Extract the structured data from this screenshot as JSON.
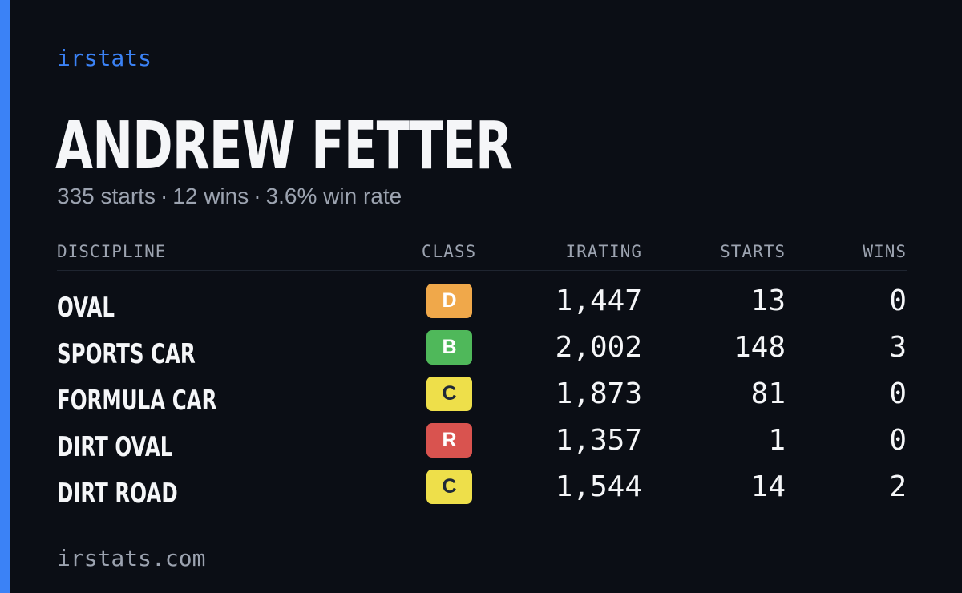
{
  "brand": "irstats",
  "player": {
    "name": "ANDREW FETTER",
    "starts_text": "335 starts",
    "wins_text": "12 wins",
    "winrate_text": "3.6% win rate",
    "separator": "·"
  },
  "table": {
    "headers": {
      "discipline": "DISCIPLINE",
      "class": "CLASS",
      "irating": "IRATING",
      "starts": "STARTS",
      "wins": "WINS"
    },
    "rows": [
      {
        "discipline": "OVAL",
        "class": "D",
        "class_bg": "#f0a84a",
        "class_fg": "#ffffff",
        "irating": "1,447",
        "starts": "13",
        "wins": "0"
      },
      {
        "discipline": "SPORTS CAR",
        "class": "B",
        "class_bg": "#4fb85a",
        "class_fg": "#ffffff",
        "irating": "2,002",
        "starts": "148",
        "wins": "3"
      },
      {
        "discipline": "FORMULA CAR",
        "class": "C",
        "class_bg": "#eedf4a",
        "class_fg": "#1f2937",
        "irating": "1,873",
        "starts": "81",
        "wins": "0"
      },
      {
        "discipline": "DIRT OVAL",
        "class": "R",
        "class_bg": "#d9534f",
        "class_fg": "#ffffff",
        "irating": "1,357",
        "starts": "1",
        "wins": "0"
      },
      {
        "discipline": "DIRT ROAD",
        "class": "C",
        "class_bg": "#eedf4a",
        "class_fg": "#1f2937",
        "irating": "1,544",
        "starts": "14",
        "wins": "2"
      }
    ]
  },
  "footer": "irstats.com",
  "colors": {
    "accent": "#3b82f6",
    "background": "#0b0e15",
    "muted_text": "#9ca3b0",
    "primary_text": "#f5f6f8"
  }
}
